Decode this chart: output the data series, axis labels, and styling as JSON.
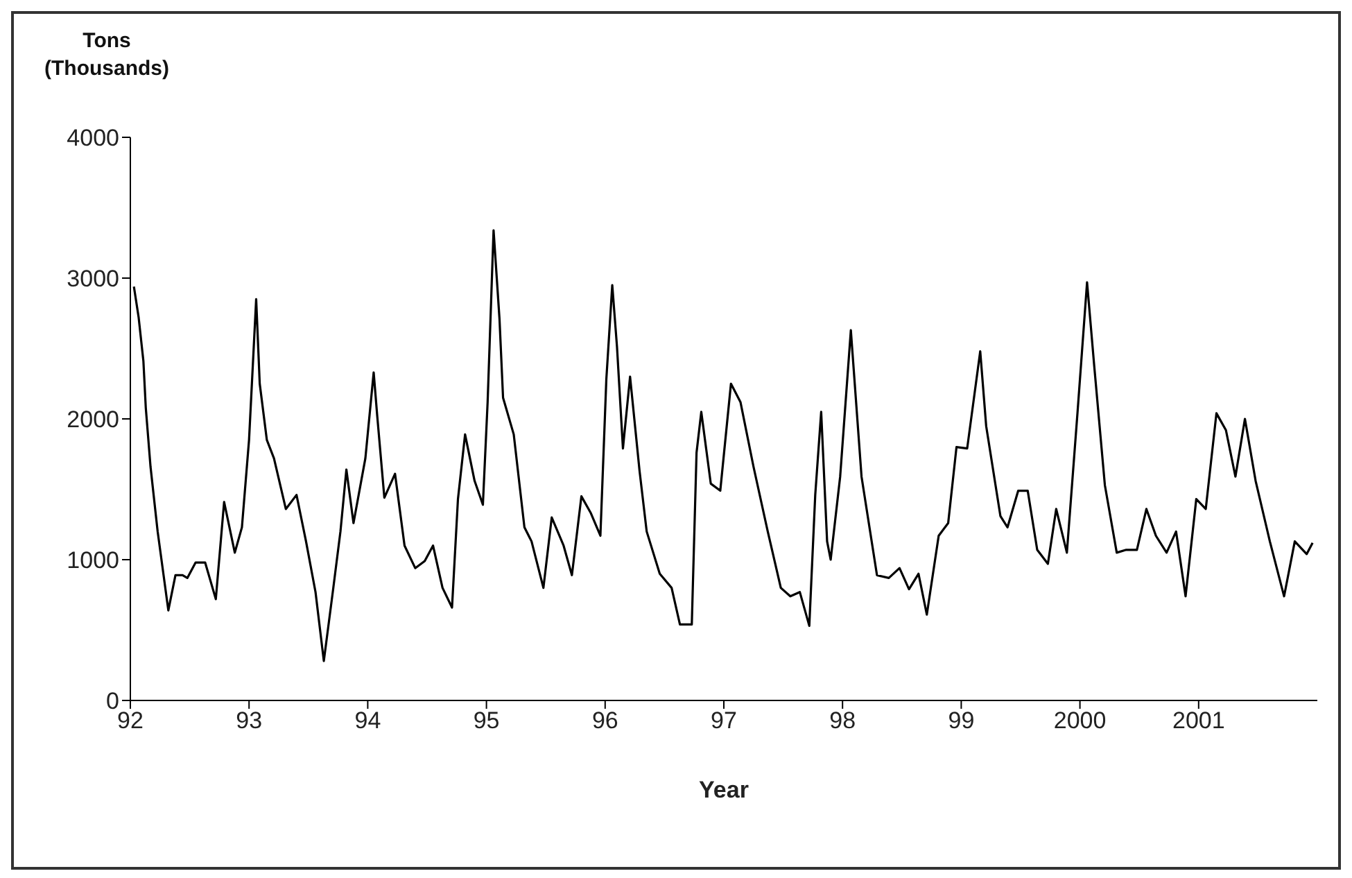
{
  "chart_data": {
    "type": "line",
    "xlabel": "Year",
    "ylabel": "Tons\n(Thousands)",
    "xlim": [
      1992,
      2002
    ],
    "xticks": [
      {
        "value": 1992,
        "label": "92"
      },
      {
        "value": 1993,
        "label": "93"
      },
      {
        "value": 1994,
        "label": "94"
      },
      {
        "value": 1995,
        "label": "95"
      },
      {
        "value": 1996,
        "label": "96"
      },
      {
        "value": 1997,
        "label": "97"
      },
      {
        "value": 1998,
        "label": "98"
      },
      {
        "value": 1999,
        "label": "99"
      },
      {
        "value": 2000,
        "label": "2000"
      },
      {
        "value": 2001,
        "label": "2001"
      }
    ],
    "ylim": [
      0,
      4000
    ],
    "yticks": [
      0,
      1000,
      2000,
      3000,
      4000
    ],
    "grid": false,
    "marker": "none",
    "line_style": "solid",
    "series": [
      {
        "color": "#000000",
        "x": [
          1992.03,
          1992.07,
          1992.11,
          1992.13,
          1992.17,
          1992.23,
          1992.32,
          1992.38,
          1992.44,
          1992.48,
          1992.55,
          1992.63,
          1992.72,
          1992.79,
          1992.88,
          1992.94,
          1993.0,
          1993.06,
          1993.09,
          1993.15,
          1993.21,
          1993.31,
          1993.4,
          1993.48,
          1993.56,
          1993.63,
          1993.71,
          1993.77,
          1993.82,
          1993.88,
          1993.98,
          1994.05,
          1994.08,
          1994.14,
          1994.23,
          1994.31,
          1994.4,
          1994.48,
          1994.55,
          1994.63,
          1994.71,
          1994.76,
          1994.82,
          1994.9,
          1994.97,
          1995.01,
          1995.06,
          1995.11,
          1995.14,
          1995.23,
          1995.32,
          1995.38,
          1995.48,
          1995.55,
          1995.65,
          1995.72,
          1995.8,
          1995.88,
          1995.96,
          1996.01,
          1996.06,
          1996.1,
          1996.15,
          1996.21,
          1996.29,
          1996.35,
          1996.46,
          1996.56,
          1996.63,
          1996.73,
          1996.77,
          1996.81,
          1996.89,
          1996.97,
          1997.06,
          1997.14,
          1997.25,
          1997.37,
          1997.48,
          1997.56,
          1997.64,
          1997.72,
          1997.77,
          1997.82,
          1997.87,
          1997.9,
          1997.98,
          1998.07,
          1998.16,
          1998.29,
          1998.39,
          1998.48,
          1998.56,
          1998.64,
          1998.71,
          1998.81,
          1998.89,
          1998.96,
          1999.05,
          1999.16,
          1999.21,
          1999.33,
          1999.39,
          1999.48,
          1999.56,
          1999.64,
          1999.73,
          1999.8,
          1999.89,
          1999.98,
          2000.06,
          2000.12,
          2000.21,
          2000.31,
          2000.39,
          2000.48,
          2000.56,
          2000.64,
          2000.73,
          2000.81,
          2000.89,
          2000.98,
          2001.06,
          2001.15,
          2001.23,
          2001.31,
          2001.39,
          2001.48,
          2001.6,
          2001.72,
          2001.81,
          2001.91,
          2001.96
        ],
        "values": [
          2940,
          2720,
          2410,
          2080,
          1660,
          1200,
          640,
          890,
          890,
          870,
          980,
          980,
          720,
          1410,
          1050,
          1230,
          1850,
          2850,
          2250,
          1850,
          1720,
          1360,
          1460,
          1130,
          770,
          280,
          800,
          1200,
          1640,
          1260,
          1720,
          2330,
          2020,
          1440,
          1610,
          1100,
          940,
          990,
          1100,
          800,
          660,
          1430,
          1890,
          1560,
          1390,
          2120,
          3340,
          2710,
          2150,
          1890,
          1230,
          1130,
          800,
          1300,
          1100,
          890,
          1450,
          1330,
          1170,
          2280,
          2950,
          2510,
          1790,
          2300,
          1630,
          1200,
          900,
          800,
          540,
          540,
          1760,
          2050,
          1540,
          1490,
          2250,
          2120,
          1660,
          1200,
          800,
          740,
          770,
          530,
          1460,
          2050,
          1130,
          1000,
          1590,
          2630,
          1590,
          890,
          870,
          940,
          790,
          900,
          610,
          1170,
          1260,
          1800,
          1790,
          2480,
          1950,
          1310,
          1230,
          1490,
          1490,
          1070,
          970,
          1360,
          1050,
          2050,
          2970,
          2380,
          1530,
          1050,
          1070,
          1070,
          1360,
          1170,
          1050,
          1200,
          740,
          1430,
          1360,
          2040,
          1920,
          1590,
          2000,
          1560,
          1130,
          740,
          1130,
          1040,
          1120
        ]
      }
    ]
  }
}
